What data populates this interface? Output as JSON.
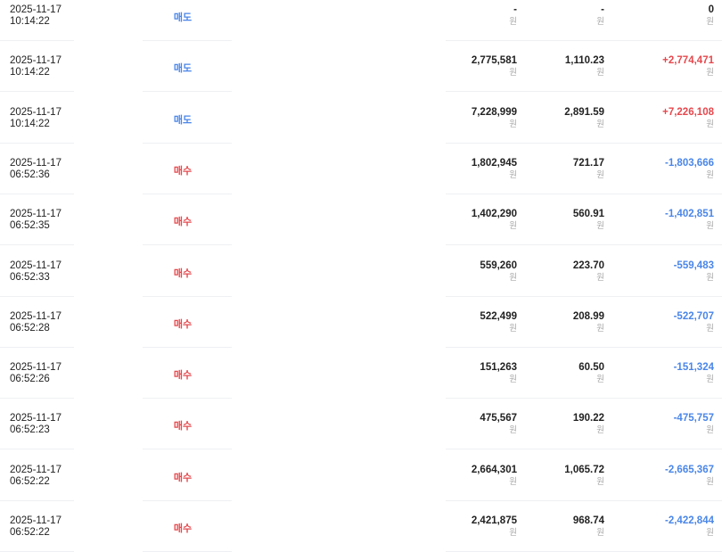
{
  "currency_unit": "원",
  "colors": {
    "sell": "#4a86e8",
    "buy": "#e5484d",
    "positive": "#e5484d",
    "negative": "#4a86e8"
  },
  "rows": [
    {
      "date": "2025-11-17",
      "time": "10:14:22",
      "type": "매도",
      "side": "sell",
      "amount": "-",
      "fee": "-",
      "total": "0",
      "sign": "zero"
    },
    {
      "date": "2025-11-17",
      "time": "10:14:22",
      "type": "매도",
      "side": "sell",
      "amount": "2,775,581",
      "fee": "1,110.23",
      "total": "+2,774,471",
      "sign": "positive"
    },
    {
      "date": "2025-11-17",
      "time": "10:14:22",
      "type": "매도",
      "side": "sell",
      "amount": "7,228,999",
      "fee": "2,891.59",
      "total": "+7,226,108",
      "sign": "positive"
    },
    {
      "date": "2025-11-17",
      "time": "06:52:36",
      "type": "매수",
      "side": "buy",
      "amount": "1,802,945",
      "fee": "721.17",
      "total": "-1,803,666",
      "sign": "negative"
    },
    {
      "date": "2025-11-17",
      "time": "06:52:35",
      "type": "매수",
      "side": "buy",
      "amount": "1,402,290",
      "fee": "560.91",
      "total": "-1,402,851",
      "sign": "negative"
    },
    {
      "date": "2025-11-17",
      "time": "06:52:33",
      "type": "매수",
      "side": "buy",
      "amount": "559,260",
      "fee": "223.70",
      "total": "-559,483",
      "sign": "negative"
    },
    {
      "date": "2025-11-17",
      "time": "06:52:28",
      "type": "매수",
      "side": "buy",
      "amount": "522,499",
      "fee": "208.99",
      "total": "-522,707",
      "sign": "negative"
    },
    {
      "date": "2025-11-17",
      "time": "06:52:26",
      "type": "매수",
      "side": "buy",
      "amount": "151,263",
      "fee": "60.50",
      "total": "-151,324",
      "sign": "negative"
    },
    {
      "date": "2025-11-17",
      "time": "06:52:23",
      "type": "매수",
      "side": "buy",
      "amount": "475,567",
      "fee": "190.22",
      "total": "-475,757",
      "sign": "negative"
    },
    {
      "date": "2025-11-17",
      "time": "06:52:22",
      "type": "매수",
      "side": "buy",
      "amount": "2,664,301",
      "fee": "1,065.72",
      "total": "-2,665,367",
      "sign": "negative"
    },
    {
      "date": "2025-11-17",
      "time": "06:52:22",
      "type": "매수",
      "side": "buy",
      "amount": "2,421,875",
      "fee": "968.74",
      "total": "-2,422,844",
      "sign": "negative"
    }
  ]
}
